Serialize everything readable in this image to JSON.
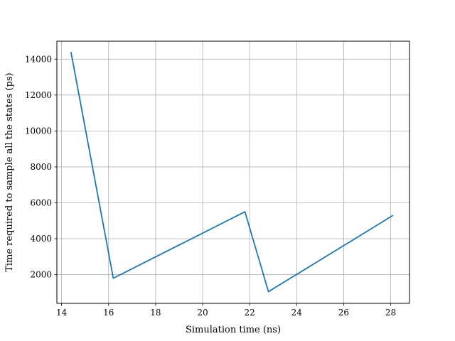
{
  "chart_data": {
    "type": "line",
    "title": "",
    "xlabel": "Simulation time (ns)",
    "ylabel": "Time required to sample all the states (ps)",
    "xlim": [
      13.8,
      28.8
    ],
    "ylim": [
      400,
      15000
    ],
    "xticks": [
      14,
      16,
      18,
      20,
      22,
      24,
      26,
      28
    ],
    "yticks": [
      2000,
      4000,
      6000,
      8000,
      10000,
      12000,
      14000
    ],
    "grid": true,
    "legend": "none",
    "series": [
      {
        "color": "#1f77b4",
        "x": [
          14.4,
          16.2,
          21.8,
          22.8,
          28.1
        ],
        "y": [
          14400,
          1800,
          5500,
          1050,
          5300
        ]
      }
    ]
  }
}
